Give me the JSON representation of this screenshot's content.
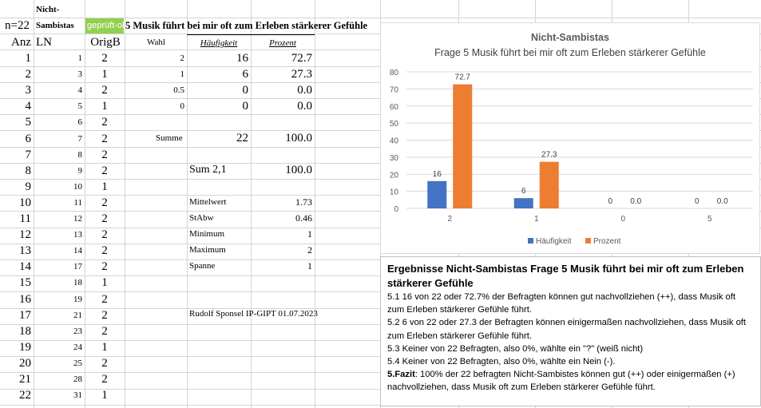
{
  "header": {
    "a1": "",
    "b1": "Nicht-",
    "a2": "n=22",
    "b2": "Sambistas",
    "c2": "geprüft-ok",
    "d2": "5 Musik führt bei mir oft zum Erleben stärkerer Gefühle",
    "a3": "Anz",
    "b3": "LN",
    "c3": "OrigB",
    "d3": "Wahl",
    "e3": "Häufigkeit",
    "f3": "Prozent"
  },
  "rows": [
    {
      "anz": "1",
      "ln": "1",
      "orig": "2"
    },
    {
      "anz": "2",
      "ln": "3",
      "orig": "1"
    },
    {
      "anz": "3",
      "ln": "4",
      "orig": "2"
    },
    {
      "anz": "4",
      "ln": "5",
      "orig": "1"
    },
    {
      "anz": "5",
      "ln": "6",
      "orig": "2"
    },
    {
      "anz": "6",
      "ln": "7",
      "orig": "2"
    },
    {
      "anz": "7",
      "ln": "8",
      "orig": "2"
    },
    {
      "anz": "8",
      "ln": "9",
      "orig": "2"
    },
    {
      "anz": "9",
      "ln": "10",
      "orig": "1"
    },
    {
      "anz": "10",
      "ln": "11",
      "orig": "2"
    },
    {
      "anz": "11",
      "ln": "12",
      "orig": "2"
    },
    {
      "anz": "12",
      "ln": "13",
      "orig": "2"
    },
    {
      "anz": "13",
      "ln": "14",
      "orig": "2"
    },
    {
      "anz": "14",
      "ln": "17",
      "orig": "2"
    },
    {
      "anz": "15",
      "ln": "18",
      "orig": "1"
    },
    {
      "anz": "16",
      "ln": "19",
      "orig": "2"
    },
    {
      "anz": "17",
      "ln": "21",
      "orig": "2"
    },
    {
      "anz": "18",
      "ln": "23",
      "orig": "2"
    },
    {
      "anz": "19",
      "ln": "24",
      "orig": "1"
    },
    {
      "anz": "20",
      "ln": "25",
      "orig": "2"
    },
    {
      "anz": "21",
      "ln": "28",
      "orig": "2"
    },
    {
      "anz": "22",
      "ln": "31",
      "orig": "1"
    }
  ],
  "freq": [
    {
      "wahl": "2",
      "h": "16",
      "p": "72.7"
    },
    {
      "wahl": "1",
      "h": "6",
      "p": "27.3"
    },
    {
      "wahl": "0.5",
      "h": "0",
      "p": "0.0"
    },
    {
      "wahl": "0",
      "h": "0",
      "p": "0.0"
    }
  ],
  "summe": {
    "label": "Summe",
    "h": "22",
    "p": "100.0"
  },
  "sum21": {
    "label": "Sum 2,1",
    "p": "100.0"
  },
  "stats": [
    {
      "label": "Mittelwert",
      "value": "1.73"
    },
    {
      "label": "StAbw",
      "value": "0.46"
    },
    {
      "label": "Minimum",
      "value": "1"
    },
    {
      "label": "Maximum",
      "value": "2"
    },
    {
      "label": "Spanne",
      "value": "1"
    }
  ],
  "credit": "Rudolf Sponsel IP-GIPT 01.07.2023",
  "colors": {
    "blue": "#4472c4",
    "orange": "#ed7d31",
    "green": "#92d050"
  },
  "chart_data": {
    "type": "bar",
    "title": "Nicht-Sambistas",
    "subtitle": "Frage 5 Musik führt bei mir oft zum Erleben stärkerer Gefühle",
    "categories": [
      "2",
      "1",
      "0",
      "5"
    ],
    "series": [
      {
        "name": "Häufigkeit",
        "values": [
          16,
          6,
          0,
          0
        ],
        "labels": [
          "16",
          "6",
          "0",
          "0"
        ]
      },
      {
        "name": "Prozent",
        "values": [
          72.7,
          27.3,
          0,
          0
        ],
        "labels": [
          "72.7",
          "27.3",
          "0.0",
          "0.0"
        ]
      }
    ],
    "yticks": [
      "0",
      "10",
      "20",
      "30",
      "40",
      "50",
      "60",
      "70",
      "80"
    ],
    "ylim": [
      0,
      80
    ],
    "legend": "bottom",
    "grid": true
  },
  "results": {
    "head": "Ergebnisse  Nicht-Sambistas Frage 5 Musik führt bei mir oft zum Erleben stärkerer Gefühle",
    "l1": "5.1   16 von 22 oder 72.7% der Befragten können gut nachvollziehen (++), dass Musik oft zum Erleben stärkerer Gefühle führt.",
    "l2": "5.2   6 von 22 oder 27.3 der Befragten können einigermaßen nachvollziehen, dass Musik oft zum Erleben stärkerer Gefühle führt.",
    "l3": "5.3  Keiner von 22 Befragten, also 0%, wählte ein \"?\" (weiß nicht)",
    "l4": "5.4  Keiner von 22 Befragten, also 0%, wählte ein Nein (-).",
    "fazit_label": "5.Fazit",
    "fazit": ": 100% der 22 befragten Nicht-Sambistes können gut (++) oder einigermaßen (+) nachvollziehen, dass Musik oft zum Erleben stärkerer Gefühle führt."
  }
}
